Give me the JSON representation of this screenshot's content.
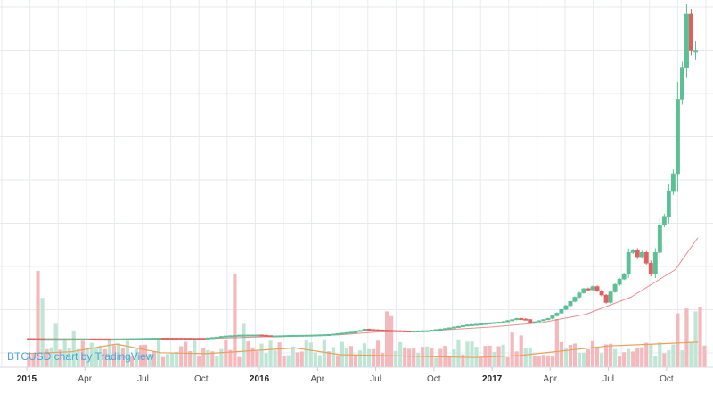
{
  "watermark": "BTCUSD chart by TradingView",
  "colors": {
    "up": "#5cbf95",
    "down": "#e0605f",
    "vol_up": "#bfe6d5",
    "vol_down": "#f3b9bd",
    "vol_ma": "#e8a15c",
    "grid": "#e6e9ef",
    "axis_text": "#4a4a4a"
  },
  "chart_data": {
    "type": "candlestick",
    "title": "",
    "x_unit": "week",
    "x_ticks": [
      {
        "label": "2015",
        "week": 0,
        "year": true
      },
      {
        "label": "Apr",
        "week": 13,
        "year": false
      },
      {
        "label": "Jul",
        "week": 26,
        "year": false
      },
      {
        "label": "Oct",
        "week": 39,
        "year": false
      },
      {
        "label": "2016",
        "week": 52,
        "year": true
      },
      {
        "label": "Apr",
        "week": 65,
        "year": false
      },
      {
        "label": "Jul",
        "week": 78,
        "year": false
      },
      {
        "label": "Oct",
        "week": 91,
        "year": false
      },
      {
        "label": "2017",
        "week": 104,
        "year": true
      },
      {
        "label": "Apr",
        "week": 117,
        "year": false
      },
      {
        "label": "Jul",
        "week": 130,
        "year": false
      },
      {
        "label": "Oct",
        "week": 143,
        "year": false
      }
    ],
    "price_anchors": [
      [
        0,
        260
      ],
      [
        3,
        235
      ],
      [
        4,
        230
      ],
      [
        8,
        230
      ],
      [
        14,
        240
      ],
      [
        19,
        230
      ],
      [
        27,
        270
      ],
      [
        30,
        280
      ],
      [
        40,
        270
      ],
      [
        43,
        330
      ],
      [
        44,
        360
      ],
      [
        45,
        380
      ],
      [
        48,
        420
      ],
      [
        52,
        430
      ],
      [
        55,
        380
      ],
      [
        60,
        410
      ],
      [
        64,
        420
      ],
      [
        68,
        450
      ],
      [
        72,
        540
      ],
      [
        74,
        580
      ],
      [
        76,
        700
      ],
      [
        77,
        680
      ],
      [
        80,
        650
      ],
      [
        86,
        610
      ],
      [
        90,
        630
      ],
      [
        94,
        730
      ],
      [
        99,
        900
      ],
      [
        102,
        950
      ],
      [
        104,
        1000
      ],
      [
        107,
        1050
      ],
      [
        110,
        1200
      ],
      [
        112,
        1150
      ],
      [
        113,
        1000
      ],
      [
        114,
        1050
      ],
      [
        117,
        1200
      ],
      [
        119,
        1450
      ],
      [
        121,
        1800
      ],
      [
        123,
        2200
      ],
      [
        125,
        2600
      ],
      [
        126,
        2550
      ],
      [
        127,
        2700
      ],
      [
        128,
        2500
      ],
      [
        129,
        2300
      ],
      [
        130,
        1950
      ],
      [
        131,
        2450
      ],
      [
        132,
        2800
      ],
      [
        134,
        3300
      ],
      [
        135,
        4300
      ],
      [
        136,
        4400
      ],
      [
        137,
        4100
      ],
      [
        138,
        4300
      ],
      [
        139,
        3800
      ],
      [
        140,
        3300
      ],
      [
        141,
        4300
      ],
      [
        142,
        5600
      ],
      [
        143,
        6000
      ],
      [
        144,
        7200
      ],
      [
        145,
        8000
      ],
      [
        146,
        11500
      ],
      [
        147,
        13000
      ],
      [
        148,
        15500
      ],
      [
        149,
        13800
      ]
    ],
    "volume_spikes": [
      {
        "week": 2,
        "value": 100
      },
      {
        "week": 3,
        "value": 72
      },
      {
        "week": 6,
        "value": 45
      },
      {
        "week": 10,
        "value": 38
      },
      {
        "week": 46,
        "value": 97
      },
      {
        "week": 48,
        "value": 45
      },
      {
        "week": 80,
        "value": 58
      },
      {
        "week": 81,
        "value": 53
      },
      {
        "week": 108,
        "value": 36
      },
      {
        "week": 110,
        "value": 33
      },
      {
        "week": 118,
        "value": 50
      },
      {
        "week": 145,
        "value": 56
      },
      {
        "week": 147,
        "value": 61
      },
      {
        "week": 149,
        "value": 58
      },
      {
        "week": 150,
        "value": 62
      }
    ],
    "volume_baseline": 22,
    "volume_ma": [
      [
        0,
        14
      ],
      [
        10,
        16
      ],
      [
        20,
        24
      ],
      [
        30,
        15
      ],
      [
        40,
        14
      ],
      [
        50,
        17
      ],
      [
        60,
        20
      ],
      [
        70,
        13
      ],
      [
        80,
        12
      ],
      [
        90,
        11
      ],
      [
        100,
        10
      ],
      [
        110,
        12
      ],
      [
        120,
        17
      ],
      [
        130,
        22
      ],
      [
        140,
        24
      ],
      [
        150,
        26
      ]
    ],
    "ma": [
      [
        0,
        250
      ],
      [
        20,
        245
      ],
      [
        40,
        250
      ],
      [
        52,
        330
      ],
      [
        60,
        380
      ],
      [
        70,
        430
      ],
      [
        78,
        560
      ],
      [
        90,
        620
      ],
      [
        104,
        800
      ],
      [
        115,
        1000
      ],
      [
        125,
        1400
      ],
      [
        135,
        2200
      ],
      [
        145,
        3500
      ],
      [
        150,
        5000
      ]
    ],
    "price_lim": [
      0,
      16000
    ],
    "volume_lim": [
      0,
      100
    ]
  }
}
